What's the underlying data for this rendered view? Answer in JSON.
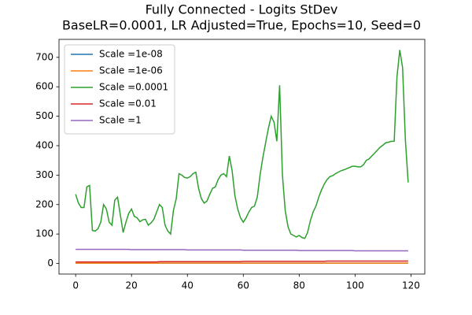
{
  "chart_data": {
    "type": "line",
    "title": "Fully Connected - Logits StDev",
    "subtitle": "BaseLR=0.0001, LR Adjusted=True, Epochs=10, Seed=0",
    "legend": "upper left",
    "xlim": [
      -5.95,
      124.95
    ],
    "xticks": [
      0,
      20,
      40,
      60,
      80,
      100,
      120
    ],
    "ylim": [
      -36,
      761
    ],
    "yticks": [
      0,
      100,
      200,
      300,
      400,
      500,
      600,
      700
    ],
    "x": [
      0,
      1,
      2,
      3,
      4,
      5,
      6,
      7,
      8,
      9,
      10,
      11,
      12,
      13,
      14,
      15,
      16,
      17,
      18,
      19,
      20,
      21,
      22,
      23,
      24,
      25,
      26,
      27,
      28,
      29,
      30,
      31,
      32,
      33,
      34,
      35,
      36,
      37,
      38,
      39,
      40,
      41,
      42,
      43,
      44,
      45,
      46,
      47,
      48,
      49,
      50,
      51,
      52,
      53,
      54,
      55,
      56,
      57,
      58,
      59,
      60,
      61,
      62,
      63,
      64,
      65,
      66,
      67,
      68,
      69,
      70,
      71,
      72,
      73,
      74,
      75,
      76,
      77,
      78,
      79,
      80,
      81,
      82,
      83,
      84,
      85,
      86,
      87,
      88,
      89,
      90,
      91,
      92,
      93,
      94,
      95,
      96,
      97,
      98,
      99,
      100,
      101,
      102,
      103,
      104,
      105,
      106,
      107,
      108,
      109,
      110,
      111,
      112,
      113,
      114,
      115,
      116,
      117,
      118,
      119
    ],
    "series": [
      {
        "name": "Scale =1e-08",
        "color": "#1f77b4",
        "values": [
          1,
          1,
          1,
          1,
          1,
          1,
          1,
          1,
          1,
          1,
          1,
          1,
          1,
          1,
          1,
          1,
          1,
          1,
          1,
          1,
          1,
          1,
          1,
          1,
          1,
          1,
          1,
          1,
          1,
          1,
          1,
          1,
          1,
          1,
          1,
          1,
          1,
          1,
          1,
          1,
          1,
          1,
          1,
          1,
          1,
          1,
          1,
          1,
          1,
          1,
          1,
          1,
          1,
          1,
          1,
          1,
          1,
          1,
          1,
          1,
          1,
          1,
          1,
          1,
          1,
          1,
          1,
          1,
          1,
          1,
          1,
          1,
          1,
          1,
          1,
          1,
          1,
          1,
          1,
          1,
          1,
          1,
          1,
          1,
          1,
          1,
          1,
          1,
          1,
          1,
          1,
          1,
          1,
          1,
          1,
          1,
          1,
          1,
          1,
          1,
          1,
          1,
          1,
          1,
          1,
          1,
          1,
          1,
          1,
          1,
          1,
          1,
          1,
          1,
          1,
          1,
          1,
          1,
          1,
          1
        ]
      },
      {
        "name": "Scale =1e-06",
        "color": "#ff7f0e",
        "values": [
          1,
          1,
          1,
          1,
          1,
          1,
          1,
          1,
          1,
          1,
          1,
          1,
          1,
          1,
          1,
          1,
          1,
          1,
          1,
          1,
          1,
          1,
          1,
          1,
          1,
          1,
          1,
          1,
          1,
          1,
          1,
          1,
          1,
          1,
          1,
          1,
          1,
          1,
          1,
          1,
          1,
          1,
          1,
          1,
          1,
          1,
          1,
          1,
          1,
          1,
          1,
          1,
          1,
          1,
          1,
          1,
          1,
          1,
          1,
          1,
          1,
          1,
          1,
          1,
          1,
          1,
          1,
          1,
          1,
          1,
          1,
          1,
          1,
          1,
          1,
          1,
          1,
          1,
          1,
          1,
          1,
          1,
          1,
          1,
          1,
          1,
          1,
          1,
          1,
          1,
          1,
          1,
          1,
          1,
          1,
          1,
          1,
          1,
          1,
          1,
          1,
          1,
          1,
          1,
          1,
          1,
          1,
          1,
          1,
          1,
          1,
          1,
          1,
          1,
          1,
          1,
          1,
          1,
          1,
          1
        ]
      },
      {
        "name": "Scale =0.0001",
        "color": "#2ca02c",
        "values": [
          235,
          205,
          190,
          190,
          260,
          265,
          112,
          110,
          118,
          140,
          200,
          185,
          140,
          130,
          215,
          225,
          165,
          105,
          140,
          170,
          185,
          160,
          155,
          142,
          148,
          150,
          130,
          138,
          150,
          175,
          200,
          190,
          130,
          110,
          100,
          180,
          220,
          305,
          300,
          292,
          290,
          295,
          305,
          310,
          255,
          220,
          205,
          212,
          235,
          255,
          260,
          285,
          300,
          305,
          295,
          365,
          315,
          230,
          185,
          155,
          140,
          155,
          175,
          190,
          195,
          225,
          300,
          360,
          410,
          460,
          500,
          480,
          415,
          605,
          300,
          180,
          125,
          100,
          95,
          90,
          95,
          88,
          85,
          105,
          145,
          175,
          195,
          225,
          250,
          270,
          285,
          295,
          298,
          305,
          310,
          315,
          318,
          322,
          326,
          330,
          330,
          328,
          328,
          335,
          350,
          355,
          365,
          375,
          385,
          395,
          402,
          410,
          412,
          415,
          415,
          635,
          725,
          665,
          420,
          275
        ]
      },
      {
        "name": "Scale =0.01",
        "color": "#d62728",
        "values": [
          5,
          5,
          5,
          5,
          5,
          5,
          5,
          5,
          5,
          5,
          5,
          5,
          5,
          5,
          5,
          5,
          5,
          5,
          5,
          5,
          5,
          5,
          5,
          5,
          5,
          5,
          5,
          5,
          5,
          5,
          6,
          6,
          6,
          6,
          6,
          6,
          6,
          6,
          6,
          6,
          6,
          6,
          6,
          6,
          6,
          6,
          6,
          6,
          6,
          6,
          6,
          6,
          6,
          6,
          6,
          6,
          6,
          6,
          6,
          6,
          7,
          7,
          7,
          7,
          7,
          7,
          7,
          7,
          7,
          7,
          7,
          7,
          7,
          7,
          7,
          7,
          7,
          7,
          7,
          7,
          7,
          7,
          7,
          7,
          7,
          7,
          7,
          7,
          7,
          7,
          8,
          8,
          8,
          8,
          8,
          8,
          8,
          8,
          8,
          8,
          8,
          8,
          8,
          8,
          8,
          8,
          8,
          8,
          8,
          8,
          8,
          8,
          8,
          8,
          8,
          8,
          8,
          8,
          8,
          8
        ]
      },
      {
        "name": "Scale =1",
        "color": "#9467bd",
        "values": [
          48,
          48,
          48,
          48,
          48,
          48,
          48,
          48,
          48,
          48,
          48,
          48,
          48,
          48,
          48,
          48,
          48,
          48,
          48,
          48,
          47,
          47,
          47,
          47,
          47,
          47,
          47,
          47,
          47,
          47,
          47,
          47,
          47,
          47,
          47,
          47,
          47,
          47,
          47,
          47,
          46,
          46,
          46,
          46,
          46,
          46,
          46,
          46,
          46,
          46,
          46,
          46,
          46,
          46,
          46,
          46,
          46,
          46,
          46,
          46,
          45,
          45,
          45,
          45,
          45,
          45,
          45,
          45,
          45,
          45,
          45,
          45,
          45,
          45,
          45,
          45,
          45,
          45,
          45,
          45,
          44,
          44,
          44,
          44,
          44,
          44,
          44,
          44,
          44,
          44,
          44,
          44,
          44,
          44,
          44,
          44,
          44,
          44,
          44,
          44,
          43,
          43,
          43,
          43,
          43,
          43,
          43,
          43,
          43,
          43,
          43,
          43,
          43,
          43,
          43,
          43,
          43,
          43,
          43,
          43
        ]
      }
    ]
  }
}
